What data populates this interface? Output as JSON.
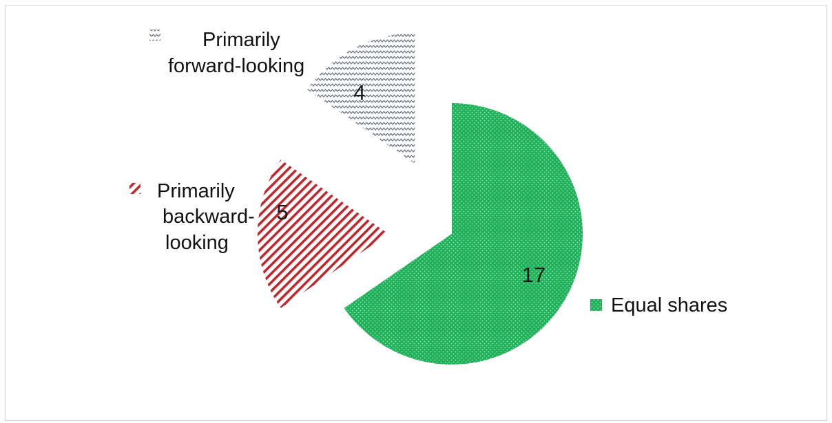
{
  "chart_data": {
    "type": "pie",
    "title": "",
    "exploded": true,
    "slices": [
      {
        "label": "Equal shares",
        "value": 17,
        "color": "#20b25a",
        "pattern": "dots"
      },
      {
        "label": "Primarily backward-looking",
        "value": 5,
        "color": "#c0262c",
        "pattern": "diagonal-stripes"
      },
      {
        "label": "Primarily forward-looking",
        "value": 4,
        "color": "#5f6a80",
        "pattern": "zigzag"
      }
    ],
    "legend": [
      {
        "lines": [
          "Primarily",
          "forward-looking"
        ],
        "position": "top"
      },
      {
        "lines": [
          "Primarily",
          "backward-",
          "looking"
        ],
        "position": "left"
      },
      {
        "lines": [
          "Equal shares"
        ],
        "position": "right"
      }
    ],
    "value_labels": [
      "17",
      "5",
      "4"
    ]
  }
}
